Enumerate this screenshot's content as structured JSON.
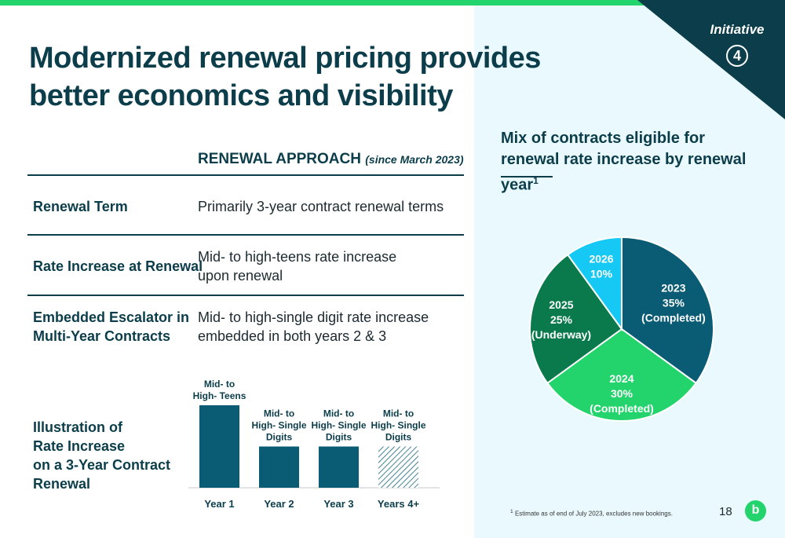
{
  "header": {
    "title": "Modernized renewal pricing provides better economics and visibility",
    "initiative_label": "Initiative",
    "initiative_number": "4"
  },
  "table": {
    "heading": "RENEWAL APPROACH",
    "heading_note": "(since March 2023)",
    "rows": [
      {
        "label_lines": [
          "Renewal Term"
        ],
        "value_lines": [
          "Primarily 3-year contract renewal terms"
        ]
      },
      {
        "label_lines": [
          "Rate Increase at Renewal"
        ],
        "value_lines": [
          "Mid- to high-teens rate increase",
          "upon renewal"
        ]
      },
      {
        "label_lines": [
          "Embedded Escalator in",
          "Multi-Year Contracts"
        ],
        "value_lines": [
          "Mid- to high-single digit rate increase",
          "embedded in both years 2 & 3"
        ]
      }
    ],
    "illustration_label_lines": [
      "Illustration of",
      "Rate Increase",
      "on a 3-Year Contract",
      "Renewal"
    ]
  },
  "chart_data": [
    {
      "type": "bar",
      "title": "",
      "categories": [
        "Year 1",
        "Year 2",
        "Year 3",
        "Years 4+"
      ],
      "bar_labels": [
        [
          "Mid- to",
          "High- Teens"
        ],
        [
          "Mid- to",
          "High- Single",
          "Digits"
        ],
        [
          "Mid- to",
          "High- Single",
          "Digits"
        ],
        [
          "Mid- to",
          "High- Single",
          "Digits"
        ]
      ],
      "values": [
        1.0,
        0.5,
        0.5,
        0.5
      ],
      "hatched": [
        false,
        false,
        false,
        true
      ],
      "color": "#0a5c74"
    },
    {
      "type": "pie",
      "title": "Mix of contracts eligible for renewal rate increase by renewal year",
      "title_sup": "1",
      "slices": [
        {
          "label": "2023",
          "value": 35,
          "pct": "35%",
          "status": "(Completed)",
          "color": "#0a5c74"
        },
        {
          "label": "2024",
          "value": 30,
          "pct": "30%",
          "status": "(Completed)",
          "color": "#22d46b"
        },
        {
          "label": "2025",
          "value": 25,
          "pct": "25%",
          "status": "(Underway)",
          "color": "#0a7a4c"
        },
        {
          "label": "2026",
          "value": 10,
          "pct": "10%",
          "status": "",
          "color": "#16c8f4"
        }
      ]
    }
  ],
  "footer": {
    "footnote_mark": "1",
    "footnote": "Estimate as of end of July 2023, excludes new bookings.",
    "page_number": "18",
    "logo_glyph": "b"
  },
  "colors": {
    "navy": "#0b3d4a",
    "green": "#22d46b",
    "panel": "#eaf9fd"
  }
}
